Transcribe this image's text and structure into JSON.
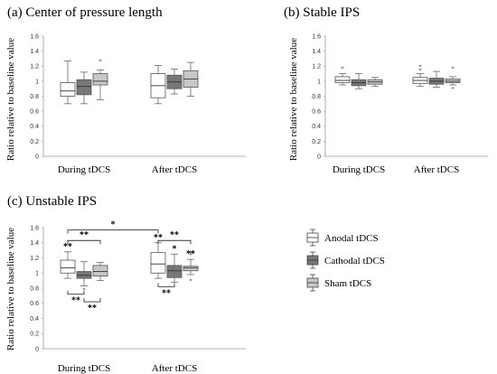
{
  "panels": [
    {
      "id": "a",
      "title": "(a) Center of pressure length",
      "ylabel": "Ratio relative to baseline value",
      "categories": [
        "During tDCS",
        "After tDCS"
      ],
      "stars": [],
      "brackets": []
    },
    {
      "id": "b",
      "title": "(b) Stable IPS",
      "ylabel": "Ratio relative to baseline value",
      "categories": [
        "During tDCS",
        "After tDCS"
      ],
      "stars": [],
      "brackets": []
    },
    {
      "id": "c",
      "title": "(c) Unstable IPS",
      "ylabel": "Ratio relative to baseline value",
      "categories": [
        "During tDCS",
        "After tDCS"
      ],
      "stars": [
        {
          "label": "**",
          "cat": 0,
          "group": 0
        },
        {
          "label": "**",
          "cat": 1,
          "group": 0
        },
        {
          "label": "*",
          "cat": 1,
          "group": 1
        },
        {
          "label": "**",
          "cat": 1,
          "group": 2
        }
      ],
      "brackets": [
        {
          "label": "*",
          "from": [
            0,
            0
          ],
          "to": [
            1,
            0
          ],
          "level": 1.57,
          "side": "top"
        },
        {
          "label": "**",
          "from": [
            0,
            0
          ],
          "to": [
            0,
            2
          ],
          "level": 1.43,
          "side": "top"
        },
        {
          "label": "**",
          "from": [
            1,
            0
          ],
          "to": [
            1,
            2
          ],
          "level": 1.43,
          "side": "top"
        },
        {
          "label": "**",
          "from": [
            0,
            0
          ],
          "to": [
            0,
            1
          ],
          "level": 0.72,
          "side": "bottom"
        },
        {
          "label": "**",
          "from": [
            0,
            1
          ],
          "to": [
            0,
            2
          ],
          "level": 0.62,
          "side": "bottom"
        },
        {
          "label": "**",
          "from": [
            1,
            0
          ],
          "to": [
            1,
            1
          ],
          "level": 0.82,
          "side": "bottom"
        }
      ]
    }
  ],
  "legend": [
    {
      "label": "Anodal tDCS",
      "color": "#ffffff"
    },
    {
      "label": "Cathodal tDCS",
      "color": "#777777"
    },
    {
      "label": "Sham tDCS",
      "color": "#c8c8c8"
    }
  ],
  "chart_data": [
    {
      "type": "box",
      "title": "(a) Center of pressure length",
      "ylabel": "Ratio relative to baseline value",
      "ylim": [
        0,
        1.6
      ],
      "yticks": [
        "0",
        "0.2",
        "0.4",
        "0.6",
        "0.8",
        "1",
        "1.2",
        "1.4",
        "1.6"
      ],
      "categories": [
        "During tDCS",
        "After tDCS"
      ],
      "series": [
        {
          "name": "Anodal tDCS",
          "boxes": [
            {
              "min": 0.7,
              "q1": 0.8,
              "median": 0.87,
              "q3": 0.98,
              "max": 1.27
            },
            {
              "min": 0.7,
              "q1": 0.78,
              "median": 0.94,
              "q3": 1.1,
              "max": 1.21
            }
          ]
        },
        {
          "name": "Cathodal tDCS",
          "boxes": [
            {
              "min": 0.7,
              "q1": 0.82,
              "median": 0.93,
              "q3": 1.02,
              "max": 1.12
            },
            {
              "min": 0.83,
              "q1": 0.9,
              "median": 0.99,
              "q3": 1.08,
              "max": 1.16
            }
          ]
        },
        {
          "name": "Sham tDCS",
          "boxes": [
            {
              "min": 0.75,
              "q1": 0.95,
              "median": 1.0,
              "q3": 1.1,
              "max": 1.15,
              "outliers": [
                1.27
              ]
            },
            {
              "min": 0.8,
              "q1": 0.92,
              "median": 1.03,
              "q3": 1.14,
              "max": 1.25
            }
          ]
        }
      ]
    },
    {
      "type": "box",
      "title": "(b) Stable IPS",
      "ylabel": "Ratio relative to baseline value",
      "ylim": [
        0,
        1.6
      ],
      "yticks": [
        "0",
        "0.2",
        "0.4",
        "0.6",
        "0.8",
        "1",
        "1.2",
        "1.4",
        "1.6"
      ],
      "categories": [
        "During tDCS",
        "After tDCS"
      ],
      "series": [
        {
          "name": "Anodal tDCS",
          "boxes": [
            {
              "min": 0.95,
              "q1": 0.98,
              "median": 1.01,
              "q3": 1.06,
              "max": 1.1,
              "outliers": [
                1.17
              ]
            },
            {
              "min": 0.93,
              "q1": 0.97,
              "median": 1.01,
              "q3": 1.05,
              "max": 1.1,
              "outliers": [
                1.15,
                1.2
              ]
            }
          ]
        },
        {
          "name": "Cathodal tDCS",
          "boxes": [
            {
              "min": 0.9,
              "q1": 0.94,
              "median": 0.98,
              "q3": 1.02,
              "max": 1.1
            },
            {
              "min": 0.92,
              "q1": 0.96,
              "median": 1.0,
              "q3": 1.04,
              "max": 1.13
            }
          ]
        },
        {
          "name": "Sham tDCS",
          "boxes": [
            {
              "min": 0.93,
              "q1": 0.96,
              "median": 0.99,
              "q3": 1.02,
              "max": 1.05
            },
            {
              "min": 0.95,
              "q1": 0.98,
              "median": 1.0,
              "q3": 1.03,
              "max": 1.06,
              "outliers": [
                1.17,
                0.9
              ]
            }
          ]
        }
      ]
    },
    {
      "type": "box",
      "title": "(c) Unstable IPS",
      "ylabel": "Ratio relative to baseline value",
      "ylim": [
        0,
        1.6
      ],
      "yticks": [
        "0",
        "0.2",
        "0.4",
        "0.6",
        "0.8",
        "1",
        "1.2",
        "1.4",
        "1.6"
      ],
      "categories": [
        "During tDCS",
        "After tDCS"
      ],
      "series": [
        {
          "name": "Anodal tDCS",
          "boxes": [
            {
              "min": 0.93,
              "q1": 1.0,
              "median": 1.07,
              "q3": 1.17,
              "max": 1.28
            },
            {
              "min": 0.93,
              "q1": 1.0,
              "median": 1.12,
              "q3": 1.27,
              "max": 1.4
            }
          ]
        },
        {
          "name": "Cathodal tDCS",
          "boxes": [
            {
              "min": 0.83,
              "q1": 0.93,
              "median": 0.97,
              "q3": 1.02,
              "max": 1.15,
              "outliers": [
                0.78
              ]
            },
            {
              "min": 0.88,
              "q1": 0.94,
              "median": 1.03,
              "q3": 1.1,
              "max": 1.25
            }
          ]
        },
        {
          "name": "Sham tDCS",
          "boxes": [
            {
              "min": 0.9,
              "q1": 0.96,
              "median": 1.02,
              "q3": 1.1,
              "max": 1.14
            },
            {
              "min": 0.98,
              "q1": 1.03,
              "median": 1.07,
              "q3": 1.09,
              "max": 1.18,
              "outliers": [
                1.24,
                1.27,
                0.9
              ]
            }
          ]
        }
      ]
    }
  ]
}
